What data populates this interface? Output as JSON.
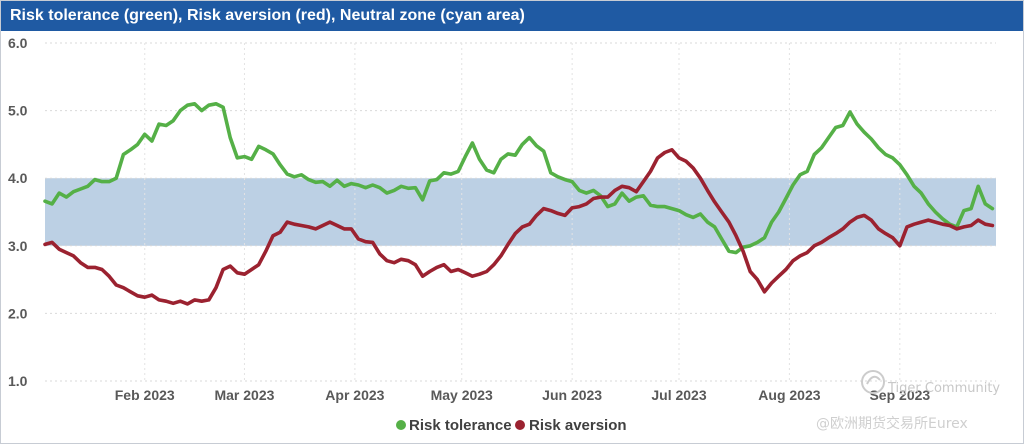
{
  "chart_data": {
    "type": "line",
    "title": "Risk tolerance (green), Risk aversion (red), Neutral zone (cyan area)",
    "xlabel": "",
    "ylabel": "",
    "ylim": [
      1.0,
      6.0
    ],
    "y_ticks": [
      "1.0",
      "2.0",
      "3.0",
      "4.0",
      "5.0",
      "6.0"
    ],
    "x_ticks": [
      "Feb 2023",
      "Mar 2023",
      "Apr 2023",
      "May 2023",
      "Jun 2023",
      "Jul 2023",
      "Aug 2023",
      "Sep 2023"
    ],
    "x_tick_days": [
      31,
      59,
      90,
      120,
      151,
      181,
      212,
      243
    ],
    "x_range_days": [
      3,
      270
    ],
    "neutral_zone": {
      "low": 3.0,
      "high": 4.0,
      "color": "#bcd0e4"
    },
    "series": [
      {
        "name": "Risk tolerance",
        "color": "#55b047",
        "x": [
          3,
          5,
          7,
          9,
          11,
          13,
          15,
          17,
          19,
          21,
          23,
          25,
          27,
          29,
          31,
          33,
          35,
          37,
          39,
          41,
          43,
          45,
          47,
          49,
          51,
          53,
          55,
          57,
          59,
          61,
          63,
          65,
          67,
          69,
          71,
          73,
          75,
          77,
          79,
          81,
          83,
          85,
          87,
          89,
          91,
          93,
          95,
          97,
          99,
          101,
          103,
          105,
          107,
          109,
          111,
          113,
          115,
          117,
          119,
          121,
          123,
          125,
          127,
          129,
          131,
          133,
          135,
          137,
          139,
          141,
          143,
          145,
          147,
          149,
          151,
          153,
          155,
          157,
          159,
          161,
          163,
          165,
          167,
          169,
          171,
          173,
          175,
          177,
          179,
          181,
          183,
          185,
          187,
          189,
          191,
          193,
          195,
          197,
          199,
          201,
          203,
          205,
          207,
          209,
          211,
          213,
          215,
          217,
          219,
          221,
          223,
          225,
          227,
          229,
          231,
          233,
          235,
          237,
          239,
          241,
          243,
          245,
          247,
          249,
          251,
          253,
          255,
          257,
          259,
          261,
          263,
          265,
          267,
          269
        ],
        "values": [
          3.66,
          3.62,
          3.78,
          3.72,
          3.8,
          3.84,
          3.88,
          3.98,
          3.95,
          3.95,
          4.0,
          4.35,
          4.42,
          4.5,
          4.65,
          4.55,
          4.8,
          4.78,
          4.85,
          5.0,
          5.08,
          5.1,
          5.0,
          5.08,
          5.1,
          5.05,
          4.6,
          4.3,
          4.32,
          4.28,
          4.47,
          4.42,
          4.36,
          4.2,
          4.06,
          4.02,
          4.05,
          3.98,
          3.94,
          3.95,
          3.88,
          3.97,
          3.88,
          3.92,
          3.9,
          3.86,
          3.9,
          3.86,
          3.78,
          3.82,
          3.88,
          3.85,
          3.86,
          3.68,
          3.96,
          3.98,
          4.08,
          4.06,
          4.1,
          4.32,
          4.52,
          4.28,
          4.12,
          4.08,
          4.28,
          4.36,
          4.34,
          4.5,
          4.6,
          4.48,
          4.4,
          4.08,
          4.02,
          3.98,
          3.95,
          3.82,
          3.78,
          3.82,
          3.74,
          3.58,
          3.62,
          3.78,
          3.66,
          3.72,
          3.74,
          3.6,
          3.58,
          3.58,
          3.55,
          3.52,
          3.46,
          3.42,
          3.47,
          3.35,
          3.28,
          3.1,
          2.92,
          2.9,
          2.98,
          3.0,
          3.05,
          3.12,
          3.35,
          3.5,
          3.7,
          3.9,
          4.05,
          4.1,
          4.35,
          4.45,
          4.6,
          4.75,
          4.78,
          4.98,
          4.8,
          4.68,
          4.58,
          4.45,
          4.35,
          4.3,
          4.2,
          4.05,
          3.88,
          3.78,
          3.62,
          3.5,
          3.4,
          3.32,
          3.28,
          3.52,
          3.55,
          3.88,
          3.62,
          3.55
        ]
      },
      {
        "name": "Risk aversion",
        "color": "#9b2230",
        "x": [
          3,
          5,
          7,
          9,
          11,
          13,
          15,
          17,
          19,
          21,
          23,
          25,
          27,
          29,
          31,
          33,
          35,
          37,
          39,
          41,
          43,
          45,
          47,
          49,
          51,
          53,
          55,
          57,
          59,
          61,
          63,
          65,
          67,
          69,
          71,
          73,
          75,
          77,
          79,
          81,
          83,
          85,
          87,
          89,
          91,
          93,
          95,
          97,
          99,
          101,
          103,
          105,
          107,
          109,
          111,
          113,
          115,
          117,
          119,
          121,
          123,
          125,
          127,
          129,
          131,
          133,
          135,
          137,
          139,
          141,
          143,
          145,
          147,
          149,
          151,
          153,
          155,
          157,
          159,
          161,
          163,
          165,
          167,
          169,
          171,
          173,
          175,
          177,
          179,
          181,
          183,
          185,
          187,
          189,
          191,
          193,
          195,
          197,
          199,
          201,
          203,
          205,
          207,
          209,
          211,
          213,
          215,
          217,
          219,
          221,
          223,
          225,
          227,
          229,
          231,
          233,
          235,
          237,
          239,
          241,
          243,
          245,
          247,
          249,
          251,
          253,
          255,
          257,
          259,
          261,
          263,
          265,
          267,
          269
        ],
        "values": [
          3.02,
          3.05,
          2.95,
          2.9,
          2.85,
          2.75,
          2.68,
          2.68,
          2.65,
          2.55,
          2.42,
          2.38,
          2.32,
          2.26,
          2.24,
          2.27,
          2.2,
          2.18,
          2.15,
          2.18,
          2.14,
          2.2,
          2.18,
          2.2,
          2.38,
          2.65,
          2.7,
          2.6,
          2.58,
          2.65,
          2.72,
          2.92,
          3.15,
          3.2,
          3.35,
          3.32,
          3.3,
          3.28,
          3.25,
          3.3,
          3.35,
          3.3,
          3.25,
          3.25,
          3.1,
          3.06,
          3.05,
          2.88,
          2.78,
          2.75,
          2.8,
          2.78,
          2.72,
          2.55,
          2.62,
          2.68,
          2.72,
          2.62,
          2.65,
          2.6,
          2.55,
          2.58,
          2.62,
          2.72,
          2.85,
          3.02,
          3.18,
          3.28,
          3.32,
          3.45,
          3.55,
          3.52,
          3.48,
          3.45,
          3.56,
          3.58,
          3.62,
          3.7,
          3.72,
          3.72,
          3.82,
          3.88,
          3.86,
          3.8,
          3.95,
          4.1,
          4.3,
          4.38,
          4.42,
          4.3,
          4.25,
          4.15,
          4.0,
          3.82,
          3.65,
          3.5,
          3.35,
          3.15,
          2.92,
          2.62,
          2.5,
          2.32,
          2.45,
          2.55,
          2.65,
          2.78,
          2.85,
          2.9,
          3.0,
          3.05,
          3.12,
          3.18,
          3.25,
          3.35,
          3.42,
          3.45,
          3.38,
          3.25,
          3.18,
          3.12,
          3.0,
          3.28,
          3.32,
          3.35,
          3.38,
          3.35,
          3.32,
          3.3,
          3.25,
          3.28,
          3.3,
          3.38,
          3.32,
          3.3
        ]
      }
    ]
  },
  "legend": {
    "items": [
      {
        "label": "Risk tolerance",
        "color": "#55b047"
      },
      {
        "label": "Risk aversion",
        "color": "#9b2230"
      }
    ]
  },
  "watermark": {
    "line1": "Tiger Community",
    "line2": "@欧洲期货交易所Eurex"
  }
}
